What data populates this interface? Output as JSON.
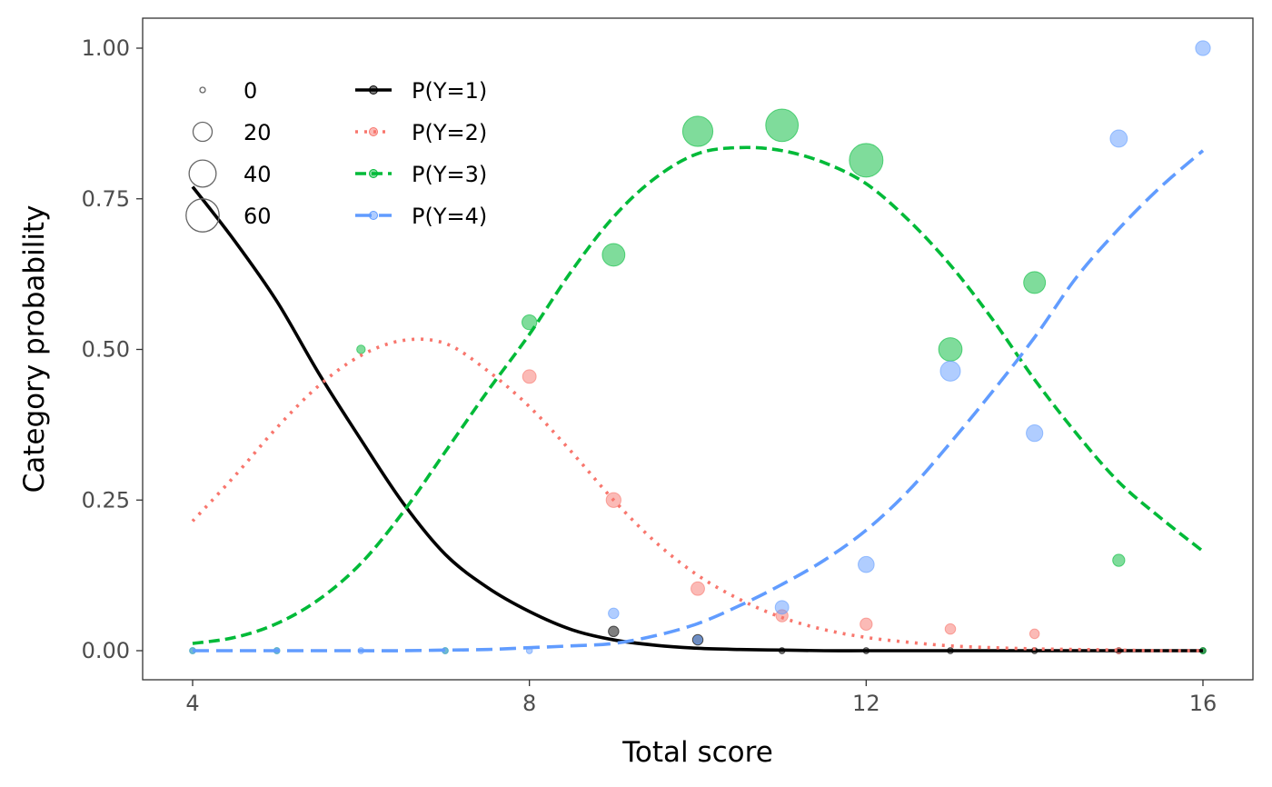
{
  "chart_data": {
    "type": "line",
    "title": "",
    "xlabel": "Total score",
    "ylabel": "Category probability",
    "xlim": [
      4,
      16
    ],
    "ylim": [
      0,
      1
    ],
    "x_ticks": [
      "4",
      "8",
      "12",
      "16"
    ],
    "y_ticks": [
      "0.00",
      "0.25",
      "0.50",
      "0.75",
      "1.00"
    ],
    "grid": false,
    "legend": {
      "placement": "top-left",
      "size_title": "",
      "size_entries": [
        "0",
        "20",
        "40",
        "60"
      ],
      "series_entries": [
        "P(Y=1)",
        "P(Y=2)",
        "P(Y=3)",
        "P(Y=4)"
      ]
    },
    "series": [
      {
        "name": "P(Y=1)",
        "color": "#000000",
        "dash": "solid",
        "x": [
          4,
          4.5,
          5,
          5.5,
          6,
          6.5,
          7,
          7.5,
          8,
          8.5,
          9,
          9.5,
          10,
          10.5,
          11,
          11.5,
          12,
          12.5,
          13,
          13.5,
          14,
          14.5,
          15,
          15.5,
          16
        ],
        "y": [
          0.77,
          0.68,
          0.58,
          0.46,
          0.35,
          0.245,
          0.16,
          0.105,
          0.065,
          0.035,
          0.018,
          0.009,
          0.004,
          0.002,
          0.001,
          0,
          0,
          0,
          0,
          0,
          0,
          0,
          0,
          0,
          0
        ],
        "points": [
          {
            "x": 9,
            "y": 0.032,
            "n": 6
          },
          {
            "x": 10,
            "y": 0.018,
            "n": 6
          },
          {
            "x": 11,
            "y": 0,
            "n": 2
          },
          {
            "x": 12,
            "y": 0,
            "n": 2
          },
          {
            "x": 13,
            "y": 0,
            "n": 2
          },
          {
            "x": 14,
            "y": 0,
            "n": 2
          },
          {
            "x": 15,
            "y": 0,
            "n": 2
          },
          {
            "x": 16,
            "y": 0,
            "n": 2
          }
        ]
      },
      {
        "name": "P(Y=2)",
        "color": "#f8766d",
        "dash": "dot",
        "x": [
          4,
          4.5,
          5,
          5.5,
          6,
          6.5,
          7,
          7.5,
          8,
          8.5,
          9,
          9.5,
          10,
          10.5,
          11,
          11.5,
          12,
          12.5,
          13,
          13.5,
          14,
          14.5,
          15,
          15.5,
          16
        ],
        "y": [
          0.215,
          0.29,
          0.37,
          0.44,
          0.49,
          0.515,
          0.51,
          0.465,
          0.405,
          0.33,
          0.25,
          0.18,
          0.125,
          0.085,
          0.055,
          0.035,
          0.022,
          0.014,
          0.008,
          0.005,
          0.003,
          0.002,
          0.001,
          0,
          0
        ],
        "points": [
          {
            "x": 8,
            "y": 0.455,
            "n": 10
          },
          {
            "x": 9,
            "y": 0.25,
            "n": 12
          },
          {
            "x": 10,
            "y": 0.103,
            "n": 10
          },
          {
            "x": 11,
            "y": 0.058,
            "n": 8
          },
          {
            "x": 12,
            "y": 0.044,
            "n": 8
          },
          {
            "x": 13,
            "y": 0.036,
            "n": 6
          },
          {
            "x": 14,
            "y": 0.028,
            "n": 5
          },
          {
            "x": 15,
            "y": 0,
            "n": 2
          }
        ]
      },
      {
        "name": "P(Y=3)",
        "color": "#00ba38",
        "dash": "dash",
        "x": [
          4,
          4.5,
          5,
          5.5,
          6,
          6.5,
          7,
          7.5,
          8,
          8.5,
          9,
          9.5,
          10,
          10.5,
          11,
          11.5,
          12,
          12.5,
          13,
          13.5,
          14,
          14.5,
          15,
          15.5,
          16
        ],
        "y": [
          0.012,
          0.022,
          0.045,
          0.085,
          0.145,
          0.23,
          0.33,
          0.43,
          0.525,
          0.63,
          0.72,
          0.785,
          0.825,
          0.835,
          0.83,
          0.81,
          0.775,
          0.715,
          0.64,
          0.55,
          0.45,
          0.36,
          0.28,
          0.22,
          0.165
        ],
        "points": [
          {
            "x": 4,
            "y": 0,
            "n": 2
          },
          {
            "x": 5,
            "y": 0,
            "n": 2
          },
          {
            "x": 6,
            "y": 0.5,
            "n": 4
          },
          {
            "x": 7,
            "y": 0,
            "n": 2
          },
          {
            "x": 8,
            "y": 0.545,
            "n": 12
          },
          {
            "x": 9,
            "y": 0.657,
            "n": 28
          },
          {
            "x": 10,
            "y": 0.862,
            "n": 50
          },
          {
            "x": 11,
            "y": 0.872,
            "n": 58
          },
          {
            "x": 12,
            "y": 0.814,
            "n": 62
          },
          {
            "x": 13,
            "y": 0.5,
            "n": 30
          },
          {
            "x": 14,
            "y": 0.611,
            "n": 26
          },
          {
            "x": 15,
            "y": 0.15,
            "n": 8
          },
          {
            "x": 16,
            "y": 0,
            "n": 2
          }
        ]
      },
      {
        "name": "P(Y=4)",
        "color": "#619cff",
        "dash": "longdash",
        "x": [
          4,
          4.5,
          5,
          5.5,
          6,
          6.5,
          7,
          7.5,
          8,
          8.5,
          9,
          9.5,
          10,
          10.5,
          11,
          11.5,
          12,
          12.5,
          13,
          13.5,
          14,
          14.5,
          15,
          15.5,
          16
        ],
        "y": [
          0,
          0,
          0,
          0,
          0,
          0,
          0.001,
          0.002,
          0.005,
          0.008,
          0.012,
          0.025,
          0.045,
          0.075,
          0.11,
          0.15,
          0.2,
          0.265,
          0.345,
          0.43,
          0.52,
          0.62,
          0.7,
          0.77,
          0.83
        ],
        "points": [
          {
            "x": 4,
            "y": 0,
            "n": 2
          },
          {
            "x": 5,
            "y": 0,
            "n": 2
          },
          {
            "x": 6,
            "y": 0,
            "n": 2
          },
          {
            "x": 7,
            "y": 0,
            "n": 2
          },
          {
            "x": 8,
            "y": 0,
            "n": 2
          },
          {
            "x": 9,
            "y": 0.062,
            "n": 6
          },
          {
            "x": 10,
            "y": 0.018,
            "n": 4
          },
          {
            "x": 11,
            "y": 0.072,
            "n": 10
          },
          {
            "x": 12,
            "y": 0.143,
            "n": 14
          },
          {
            "x": 13,
            "y": 0.464,
            "n": 22
          },
          {
            "x": 14,
            "y": 0.361,
            "n": 15
          },
          {
            "x": 15,
            "y": 0.85,
            "n": 16
          },
          {
            "x": 16,
            "y": 1.0,
            "n": 12
          }
        ]
      }
    ]
  }
}
